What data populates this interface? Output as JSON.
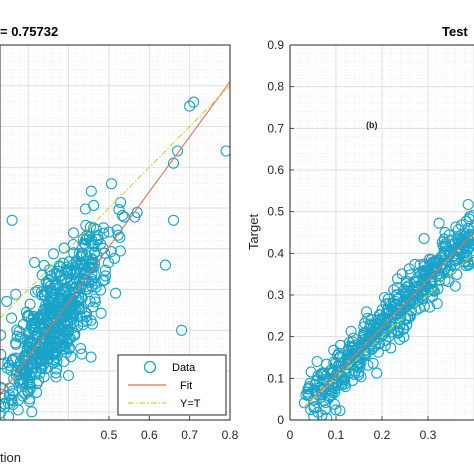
{
  "chart_data": [
    {
      "type": "scatter",
      "title": "= 0.75732",
      "xlabel": "tion",
      "ylabel": "",
      "xlim": [
        0.23,
        0.8
      ],
      "ylim": [
        -0.02,
        0.9
      ],
      "x_ticks": [
        "0.5",
        "0.6",
        "0.7",
        "0.8"
      ],
      "y_ticks": [],
      "grid": "on",
      "legend": {
        "placement": "bottom-right",
        "entries": [
          "Data",
          "Fit",
          "Y=T"
        ]
      },
      "series": [
        {
          "name": "Data",
          "style": "open-circle",
          "color": "#1aa3c8"
        },
        {
          "name": "Fit",
          "style": "line",
          "color": "#d9735a",
          "x": [
            0.23,
            0.8
          ],
          "y": [
            0.04,
            0.81
          ]
        },
        {
          "name": "Y=T",
          "style": "dash-dot",
          "color": "#c9d63a",
          "x": [
            0.23,
            0.8
          ],
          "y": [
            0.23,
            0.8
          ]
        }
      ],
      "cluster": {
        "x_range": [
          0.23,
          0.65
        ],
        "spread": 0.07
      },
      "outliers": [
        [
          0.7,
          0.75
        ],
        [
          0.71,
          0.76
        ],
        [
          0.79,
          0.64
        ],
        [
          0.66,
          0.47
        ],
        [
          0.64,
          0.36
        ],
        [
          0.68,
          0.2
        ],
        [
          0.66,
          0.61
        ],
        [
          0.67,
          0.64
        ],
        [
          0.26,
          0.47
        ]
      ]
    },
    {
      "type": "scatter",
      "title": "Test",
      "annotation": "(b)",
      "xlabel": "",
      "ylabel": "Target",
      "xlim": [
        0,
        0.4
      ],
      "ylim": [
        0,
        0.9
      ],
      "x_ticks": [
        "0",
        "0.1",
        "0.2",
        "0.3"
      ],
      "y_ticks": [
        "0",
        "0.1",
        "0.2",
        "0.3",
        "0.4",
        "0.5",
        "0.6",
        "0.7",
        "0.8",
        "0.9"
      ],
      "grid": "on",
      "series": [
        {
          "name": "Data",
          "style": "open-circle",
          "color": "#1aa3c8"
        },
        {
          "name": "Fit",
          "style": "line",
          "color": "#d9735a",
          "x": [
            0.03,
            0.4
          ],
          "y": [
            0.03,
            0.45
          ]
        },
        {
          "name": "Y=T",
          "style": "dash-dot",
          "color": "#c9d63a",
          "x": [
            0.03,
            0.4
          ],
          "y": [
            0.03,
            0.4
          ]
        }
      ],
      "cluster": {
        "x_range": [
          0.03,
          0.4
        ],
        "spread": 0.035
      }
    }
  ],
  "colors": {
    "data": "#1aa3c8",
    "fit": "#d9735a",
    "yt": "#c9d63a"
  }
}
